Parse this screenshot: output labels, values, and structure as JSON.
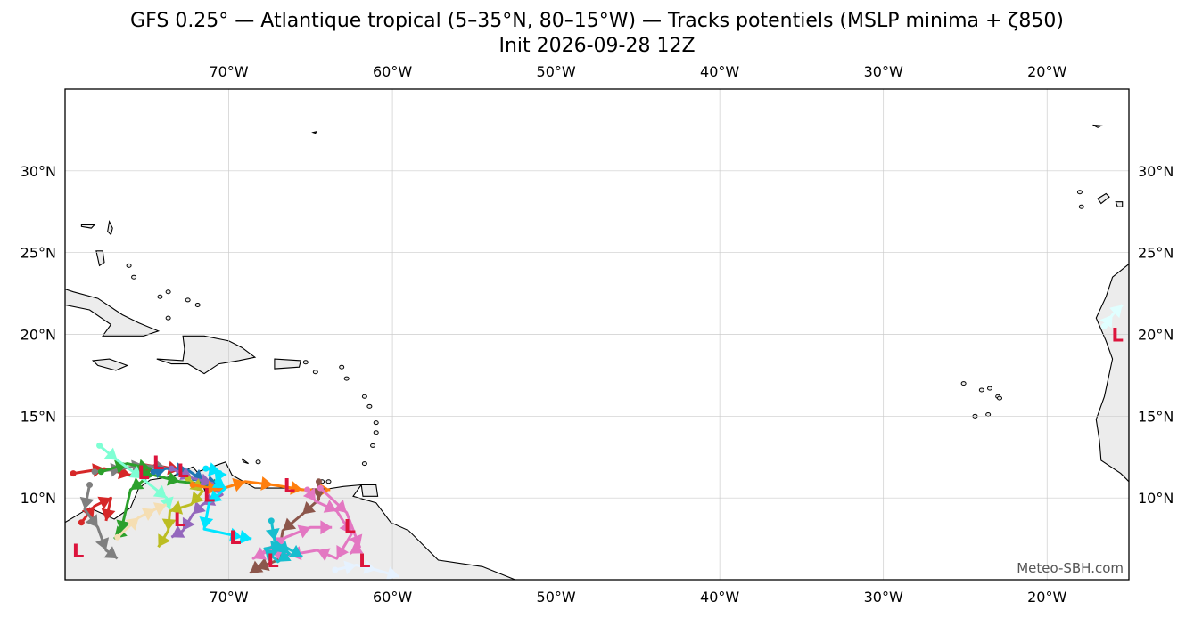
{
  "title": "GFS 0.25° — Atlantique tropical (5–35°N, 80–15°W) — Tracks potentiels (MSLP minima + ζ850)",
  "subtitle": "Init 2026-09-28 12Z",
  "credit": "Meteo-SBH.com",
  "extent": {
    "lon_min": -80,
    "lon_max": -15,
    "lat_min": 5,
    "lat_max": 35
  },
  "lon_ticks": [
    {
      "lon": -70,
      "label": "70°W"
    },
    {
      "lon": -60,
      "label": "60°W"
    },
    {
      "lon": -50,
      "label": "50°W"
    },
    {
      "lon": -40,
      "label": "40°W"
    },
    {
      "lon": -30,
      "label": "30°W"
    },
    {
      "lon": -20,
      "label": "20°W"
    }
  ],
  "lat_ticks": [
    {
      "lat": 30,
      "label": "30°N"
    },
    {
      "lat": 25,
      "label": "25°N"
    },
    {
      "lat": 20,
      "label": "20°N"
    },
    {
      "lat": 15,
      "label": "15°N"
    },
    {
      "lat": 10,
      "label": "10°N"
    }
  ],
  "colors": {
    "land": "#ececec",
    "ocean": "#ffffff",
    "grid": "#cccccc",
    "low_marker": "#dc143c"
  },
  "land": [
    {
      "name": "south-america",
      "points": [
        [
          -80,
          8.5
        ],
        [
          -78.5,
          9.4
        ],
        [
          -77,
          8.7
        ],
        [
          -76,
          9.4
        ],
        [
          -75.5,
          10.6
        ],
        [
          -74.8,
          11.1
        ],
        [
          -73.5,
          11.3
        ],
        [
          -72.2,
          11.9
        ],
        [
          -71.6,
          11.2
        ],
        [
          -71.4,
          10.3
        ],
        [
          -71.9,
          11.6
        ],
        [
          -70.2,
          12.2
        ],
        [
          -69.8,
          11.4
        ],
        [
          -68.4,
          10.6
        ],
        [
          -66.5,
          10.6
        ],
        [
          -64.3,
          10.5
        ],
        [
          -63,
          10.7
        ],
        [
          -61.9,
          10.8
        ],
        [
          -62.4,
          10.1
        ],
        [
          -61,
          9.7
        ],
        [
          -60.1,
          8.5
        ],
        [
          -59,
          8
        ],
        [
          -57.2,
          6.2
        ],
        [
          -54.5,
          5.8
        ],
        [
          -52.5,
          5
        ],
        [
          -80,
          5
        ]
      ]
    },
    {
      "name": "west-africa",
      "points": [
        [
          -15,
          24.3
        ],
        [
          -16,
          23.5
        ],
        [
          -16.4,
          22.3
        ],
        [
          -17,
          21
        ],
        [
          -16.4,
          19.6
        ],
        [
          -16,
          18.5
        ],
        [
          -16.5,
          16.2
        ],
        [
          -17,
          14.8
        ],
        [
          -16.8,
          13.5
        ],
        [
          -16.7,
          12.3
        ],
        [
          -15.5,
          11.5
        ],
        [
          -15,
          11
        ],
        [
          -15,
          24.3
        ]
      ]
    },
    {
      "name": "cuba",
      "points": [
        [
          -84.5,
          22.6
        ],
        [
          -82.5,
          23.1
        ],
        [
          -81,
          23.1
        ],
        [
          -79.5,
          22.6
        ],
        [
          -78,
          22.2
        ],
        [
          -76.5,
          21.2
        ],
        [
          -75.5,
          20.7
        ],
        [
          -74.3,
          20.2
        ],
        [
          -75.2,
          19.9
        ],
        [
          -77.7,
          19.9
        ],
        [
          -77.2,
          20.6
        ],
        [
          -78.5,
          21.5
        ],
        [
          -80.5,
          21.9
        ],
        [
          -82,
          22.1
        ],
        [
          -83.5,
          21.9
        ],
        [
          -84.5,
          22.6
        ]
      ]
    },
    {
      "name": "hispaniola",
      "points": [
        [
          -74.4,
          18.5
        ],
        [
          -72.8,
          18.4
        ],
        [
          -72.7,
          19.1
        ],
        [
          -72.8,
          19.9
        ],
        [
          -71.5,
          19.9
        ],
        [
          -70,
          19.6
        ],
        [
          -69.2,
          19.2
        ],
        [
          -68.4,
          18.6
        ],
        [
          -69.4,
          18.4
        ],
        [
          -70.6,
          18.2
        ],
        [
          -71.5,
          17.6
        ],
        [
          -72.5,
          18.2
        ],
        [
          -73.5,
          18.2
        ],
        [
          -74.4,
          18.5
        ]
      ]
    },
    {
      "name": "jamaica",
      "points": [
        [
          -78.3,
          18.4
        ],
        [
          -77.3,
          18.5
        ],
        [
          -76.2,
          18.1
        ],
        [
          -76.9,
          17.8
        ],
        [
          -78,
          18.1
        ],
        [
          -78.3,
          18.4
        ]
      ]
    },
    {
      "name": "puerto-rico",
      "points": [
        [
          -67.2,
          18.5
        ],
        [
          -65.6,
          18.4
        ],
        [
          -65.7,
          18
        ],
        [
          -67.2,
          17.9
        ],
        [
          -67.2,
          18.5
        ]
      ]
    },
    {
      "name": "andros",
      "points": [
        [
          -78.1,
          25.1
        ],
        [
          -77.7,
          25.1
        ],
        [
          -77.6,
          24.4
        ],
        [
          -77.9,
          24.2
        ],
        [
          -78.1,
          25.1
        ]
      ]
    },
    {
      "name": "grand-bahama",
      "points": [
        [
          -79,
          26.7
        ],
        [
          -78.2,
          26.7
        ],
        [
          -78.4,
          26.5
        ],
        [
          -79,
          26.6
        ],
        [
          -79,
          26.7
        ]
      ]
    },
    {
      "name": "abaco",
      "points": [
        [
          -77.3,
          26.9
        ],
        [
          -77.1,
          26.5
        ],
        [
          -77.2,
          26.1
        ],
        [
          -77.4,
          26.3
        ],
        [
          -77.3,
          26.9
        ]
      ]
    },
    {
      "name": "trinidad",
      "points": [
        [
          -61.9,
          10.8
        ],
        [
          -61,
          10.8
        ],
        [
          -60.9,
          10.1
        ],
        [
          -61.8,
          10.1
        ],
        [
          -61.9,
          10.8
        ]
      ]
    },
    {
      "name": "bermuda",
      "points": [
        [
          -64.85,
          32.35
        ],
        [
          -64.65,
          32.4
        ],
        [
          -64.7,
          32.3
        ],
        [
          -64.85,
          32.35
        ]
      ]
    },
    {
      "name": "tenerife",
      "points": [
        [
          -16.9,
          28.3
        ],
        [
          -16.4,
          28.6
        ],
        [
          -16.2,
          28.4
        ],
        [
          -16.7,
          28.0
        ],
        [
          -16.9,
          28.3
        ]
      ]
    },
    {
      "name": "gran-canaria",
      "points": [
        [
          -15.8,
          28.1
        ],
        [
          -15.4,
          28.1
        ],
        [
          -15.4,
          27.8
        ],
        [
          -15.7,
          27.8
        ],
        [
          -15.8,
          28.1
        ]
      ]
    },
    {
      "name": "madeira",
      "points": [
        [
          -17.2,
          32.8
        ],
        [
          -16.7,
          32.75
        ],
        [
          -16.9,
          32.65
        ],
        [
          -17.2,
          32.8
        ]
      ]
    },
    {
      "name": "aruba-curacao",
      "points": [
        [
          -69.2,
          12.4
        ],
        [
          -68.8,
          12.1
        ],
        [
          -69.1,
          12.2
        ],
        [
          -69.2,
          12.4
        ]
      ]
    }
  ],
  "small_islands": [
    [
      -61.7,
      16.2
    ],
    [
      -61.4,
      15.6
    ],
    [
      -61,
      14.6
    ],
    [
      -61,
      14.0
    ],
    [
      -61.2,
      13.2
    ],
    [
      -61.7,
      12.1
    ],
    [
      -62.8,
      17.3
    ],
    [
      -63.1,
      18.0
    ],
    [
      -64.7,
      17.7
    ],
    [
      -65.3,
      18.3
    ],
    [
      -71.9,
      21.8
    ],
    [
      -72.5,
      22.1
    ],
    [
      -73.7,
      21.0
    ],
    [
      -74.2,
      22.3
    ],
    [
      -75.8,
      23.5
    ],
    [
      -76.1,
      24.2
    ],
    [
      -73.7,
      22.6
    ],
    [
      -23.5,
      16.7
    ],
    [
      -23,
      16.2
    ],
    [
      -24.4,
      15.0
    ],
    [
      -23.6,
      15.1
    ],
    [
      -22.9,
      16.1
    ],
    [
      -25.1,
      17.0
    ],
    [
      -24.0,
      16.6
    ],
    [
      -13.6,
      28.9
    ],
    [
      -14.0,
      28.3
    ],
    [
      -17.9,
      27.8
    ],
    [
      -18.0,
      28.7
    ],
    [
      -68.2,
      12.2
    ],
    [
      -64.3,
      11.0
    ],
    [
      -63.9,
      11.0
    ]
  ],
  "tracks": [
    {
      "color": "#d62728",
      "points": [
        [
          -79.5,
          11.5
        ],
        [
          -77.6,
          11.8
        ],
        [
          -76.0,
          11.4
        ],
        [
          -74.5,
          12.0
        ],
        [
          -73.0,
          11.7
        ]
      ],
      "low": null
    },
    {
      "color": "#d62728",
      "points": [
        [
          -79.0,
          8.5
        ],
        [
          -78.2,
          9.5
        ],
        [
          -77.2,
          10.0
        ],
        [
          -77.5,
          8.6
        ]
      ],
      "low": [
        -79.2,
        6.8
      ]
    },
    {
      "color": "#7f7f7f",
      "points": [
        [
          -78.5,
          10.8
        ],
        [
          -78.8,
          9.3
        ],
        [
          -78.0,
          8.2
        ],
        [
          -77.5,
          6.8
        ],
        [
          -76.8,
          6.3
        ]
      ],
      "low": null
    },
    {
      "color": "#7f7f7f",
      "points": [
        [
          -78.2,
          11.6
        ],
        [
          -76.5,
          11.8
        ],
        [
          -75.2,
          12.0
        ],
        [
          -73.8,
          11.8
        ]
      ],
      "low": [
        -74.3,
        12.2
      ]
    },
    {
      "color": "#2ca02c",
      "points": [
        [
          -77.8,
          11.6
        ],
        [
          -76.2,
          12.1
        ],
        [
          -74.8,
          11.8
        ],
        [
          -75.3,
          11.0
        ],
        [
          -76.0,
          10.5
        ],
        [
          -76.6,
          7.9
        ],
        [
          -77.0,
          7.5
        ]
      ],
      "low": [
        -75.2,
        11.6
      ]
    },
    {
      "color": "#2ca02c",
      "points": [
        [
          -75.0,
          11.5
        ],
        [
          -73.0,
          11.0
        ],
        [
          -71.2,
          10.8
        ],
        [
          -70.3,
          10.6
        ]
      ],
      "low": null
    },
    {
      "color": "#7fffd4",
      "points": [
        [
          -77.9,
          13.2
        ],
        [
          -76.8,
          12.3
        ],
        [
          -75.3,
          11.2
        ],
        [
          -73.8,
          10.0
        ],
        [
          -73.6,
          9.3
        ]
      ],
      "low": null
    },
    {
      "color": "#1f77b4",
      "points": [
        [
          -74.6,
          11.6
        ],
        [
          -73.8,
          11.8
        ],
        [
          -72.5,
          11.7
        ],
        [
          -71.5,
          11.0
        ],
        [
          -70.6,
          10.8
        ]
      ],
      "low": [
        -72.8,
        11.7
      ]
    },
    {
      "color": "#9467bd",
      "points": [
        [
          -73.5,
          11.8
        ],
        [
          -72.2,
          11.2
        ],
        [
          -71.0,
          10.9
        ],
        [
          -70.4,
          10.2
        ],
        [
          -71.6,
          9.6
        ],
        [
          -72.2,
          9.0
        ],
        [
          -72.8,
          8.0
        ],
        [
          -73.5,
          7.6
        ]
      ],
      "low": [
        -71.2,
        10.2
      ]
    },
    {
      "color": "#bcbd22",
      "points": [
        [
          -72.5,
          11.2
        ],
        [
          -71.6,
          10.4
        ],
        [
          -72.3,
          9.6
        ],
        [
          -73.6,
          9.2
        ],
        [
          -73.7,
          8.0
        ],
        [
          -74.3,
          7.0
        ]
      ],
      "low": [
        -73.0,
        8.7
      ]
    },
    {
      "color": "#ff7f0e",
      "points": [
        [
          -72.2,
          10.8
        ],
        [
          -70.6,
          10.5
        ],
        [
          -69.0,
          11.0
        ],
        [
          -67.3,
          10.8
        ],
        [
          -65.5,
          10.5
        ],
        [
          -63.8,
          10.5
        ]
      ],
      "low": [
        -66.3,
        10.8
      ]
    },
    {
      "color": "#00e5ff",
      "points": [
        [
          -71.4,
          11.8
        ],
        [
          -70.5,
          11.6
        ],
        [
          -70.8,
          11.0
        ],
        [
          -70.2,
          10.6
        ],
        [
          -71.2,
          9.7
        ],
        [
          -71.5,
          8.1
        ],
        [
          -69.2,
          7.6
        ],
        [
          -68.6,
          7.5
        ]
      ],
      "low": [
        -69.6,
        7.6
      ]
    },
    {
      "color": "#8c564b",
      "points": [
        [
          -64.5,
          11.0
        ],
        [
          -64.5,
          9.9
        ],
        [
          -65.5,
          9.0
        ],
        [
          -66.7,
          8.0
        ],
        [
          -67.0,
          6.2
        ],
        [
          -68.3,
          5.7
        ],
        [
          -68.7,
          5.4
        ]
      ],
      "low": [
        -67.3,
        6.2
      ]
    },
    {
      "color": "#e377c2",
      "points": [
        [
          -65.2,
          10.5
        ],
        [
          -64.7,
          9.8
        ],
        [
          -63.4,
          9.2
        ],
        [
          -62.5,
          7.8
        ],
        [
          -63.4,
          6.3
        ],
        [
          -64.6,
          6.8
        ],
        [
          -66.3,
          6.5
        ],
        [
          -67.5,
          6.8
        ],
        [
          -68.5,
          6.3
        ],
        [
          -66.5,
          7.6
        ],
        [
          -65.0,
          8.2
        ],
        [
          -63.7,
          8.2
        ]
      ],
      "low": [
        -62.6,
        8.3
      ]
    },
    {
      "color": "#e377c2",
      "points": [
        [
          -64.4,
          10.6
        ],
        [
          -62.8,
          9.1
        ],
        [
          -62.0,
          7.0
        ],
        [
          -62.6,
          6.6
        ]
      ],
      "low": [
        -61.7,
        6.2
      ]
    },
    {
      "color": "#17becf",
      "points": [
        [
          -67.4,
          8.6
        ],
        [
          -67.2,
          7.4
        ],
        [
          -66.3,
          6.6
        ],
        [
          -67.0,
          6.1
        ],
        [
          -67.8,
          6.9
        ],
        [
          -66.7,
          7.1
        ],
        [
          -65.5,
          6.4
        ]
      ],
      "low": null
    },
    {
      "color": "#f5deb3",
      "points": [
        [
          -76.8,
          7.6
        ],
        [
          -75.5,
          8.8
        ],
        [
          -74.5,
          9.3
        ],
        [
          -73.8,
          9.6
        ]
      ],
      "low": null
    },
    {
      "color": "#e6f2ff",
      "points": [
        [
          -63.5,
          5.6
        ],
        [
          -62.2,
          5.9
        ],
        [
          -61.0,
          5.6
        ],
        [
          -59.6,
          5.2
        ]
      ],
      "low": null
    },
    {
      "color": "#e0ffff",
      "points": [
        [
          -16.5,
          20.5
        ],
        [
          -16.0,
          21.2
        ],
        [
          -15.4,
          21.8
        ]
      ],
      "low": [
        -15.7,
        20.0
      ]
    }
  ]
}
